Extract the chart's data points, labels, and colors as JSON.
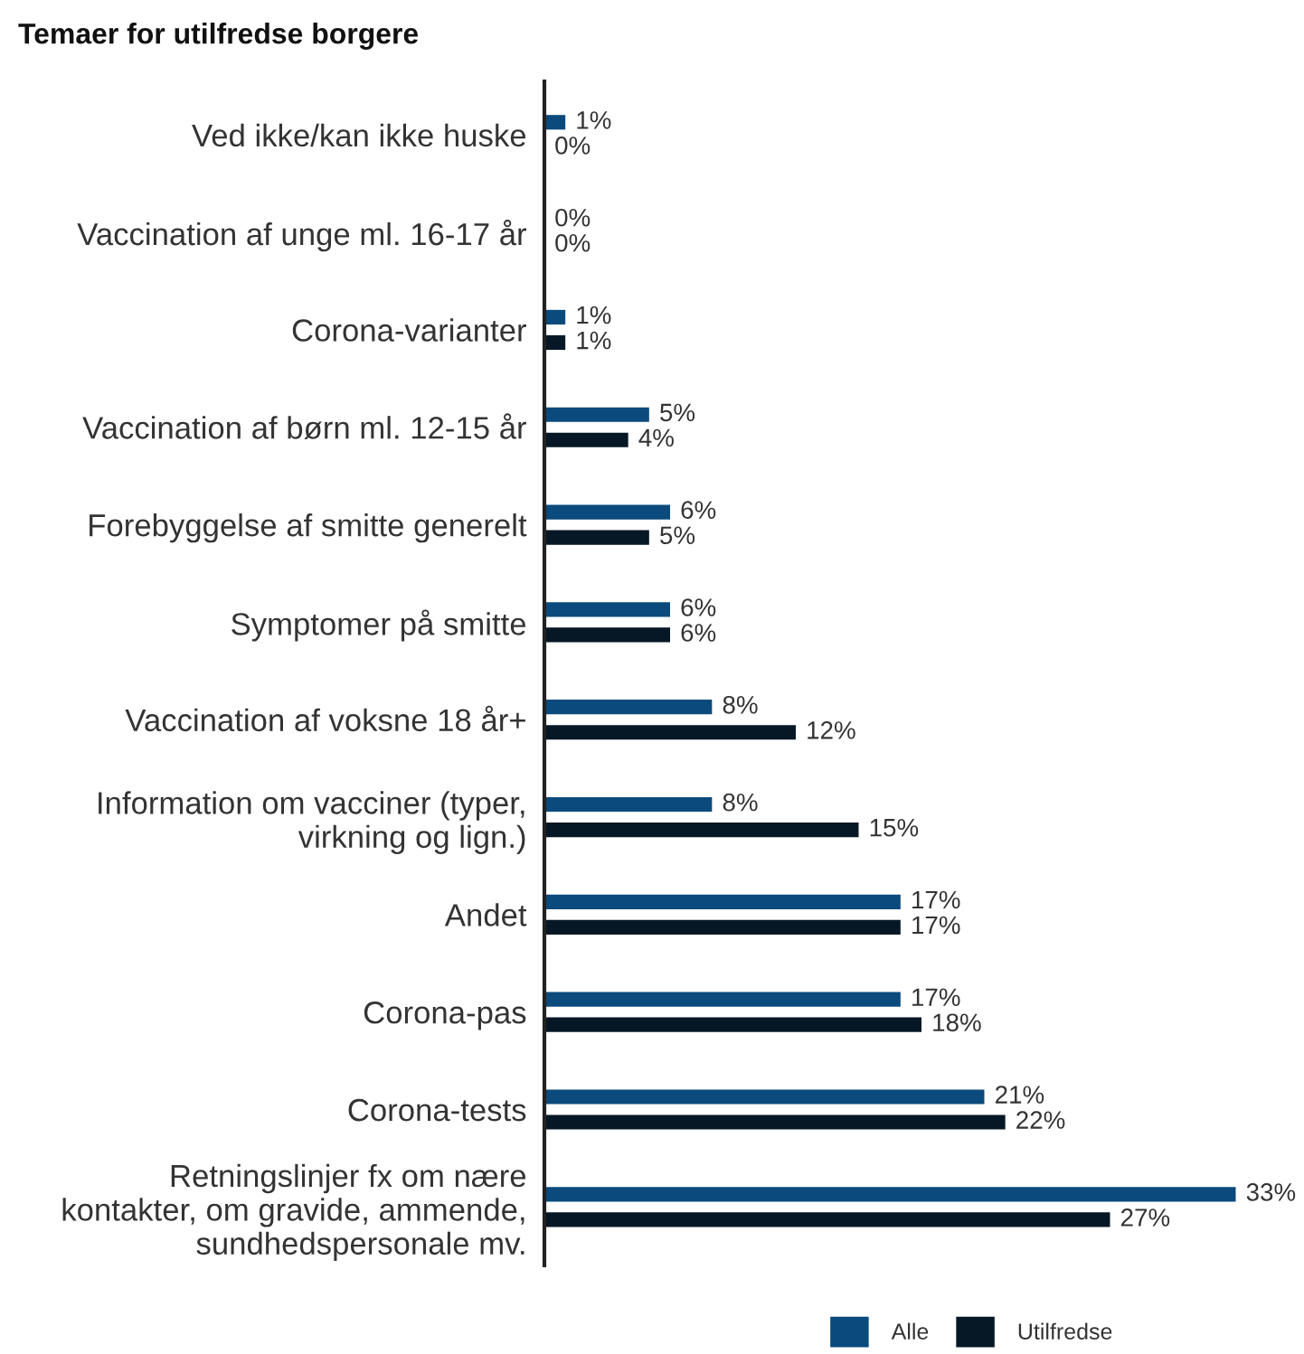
{
  "chart_data": {
    "type": "bar",
    "orientation": "horizontal",
    "title": "Temaer for utilfredse borgere",
    "categories": [
      "Ved ikke/kan ikke huske",
      "Vaccination af unge ml. 16-17 år",
      "Corona-varianter",
      "Vaccination af børn ml. 12-15 år",
      "Forebyggelse af smitte generelt",
      "Symptomer på smitte",
      "Vaccination af voksne 18 år+",
      "Information om vacciner (typer,\nvirkning og lign.)",
      "Andet",
      "Corona-pas",
      "Corona-tests",
      "Retningslinjer fx om nære\nkontakter, om gravide, ammende,\nsundhedspersonale mv."
    ],
    "series": [
      {
        "name": "Alle",
        "color": "#0b4a7c",
        "values": [
          1,
          0,
          1,
          5,
          6,
          6,
          8,
          8,
          17,
          17,
          21,
          33
        ],
        "value_labels": [
          "1%",
          "0%",
          "1%",
          "5%",
          "6%",
          "6%",
          "8%",
          "8%",
          "17%",
          "17%",
          "21%",
          "33%"
        ]
      },
      {
        "name": "Utilfredse",
        "color": "#061726",
        "values": [
          0,
          0,
          1,
          4,
          5,
          6,
          12,
          15,
          17,
          18,
          22,
          27
        ],
        "value_labels": [
          "0%",
          "0%",
          "1%",
          "4%",
          "5%",
          "6%",
          "12%",
          "15%",
          "17%",
          "18%",
          "22%",
          "27%"
        ]
      }
    ],
    "legend": "bottom",
    "tick_labels": "y"
  }
}
